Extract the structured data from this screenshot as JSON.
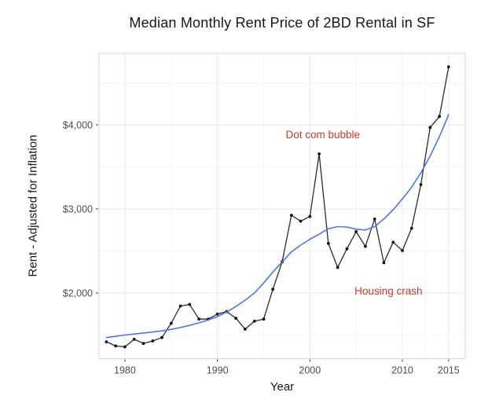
{
  "chart_data": {
    "type": "line",
    "title": "Median Monthly Rent Price of 2BD Rental in SF",
    "xlabel": "Year",
    "ylabel": "Rent - Adjusted for Inflation",
    "xlim": [
      1977.2,
      2016.8
    ],
    "ylim": [
      1220,
      4850
    ],
    "grid": "on",
    "legend": "none",
    "x_ticks": [
      {
        "value": 1980,
        "label": "1980"
      },
      {
        "value": 1990,
        "label": "1990"
      },
      {
        "value": 2000,
        "label": "2000"
      },
      {
        "value": 2010,
        "label": "2010"
      },
      {
        "value": 2015,
        "label": "2015"
      }
    ],
    "y_ticks": [
      {
        "value": 2000,
        "label": "$2,000"
      },
      {
        "value": 3000,
        "label": "$3,000"
      },
      {
        "value": 4000,
        "label": "$4,000"
      }
    ],
    "x_minor": [
      1985,
      1995,
      2005,
      2012.5
    ],
    "y_minor": [
      1500,
      2500,
      3500,
      4500
    ],
    "x": [
      1978,
      1979,
      1980,
      1981,
      1982,
      1983,
      1984,
      1985,
      1986,
      1987,
      1988,
      1989,
      1990,
      1991,
      1992,
      1993,
      1994,
      1995,
      1996,
      1997,
      1998,
      1999,
      2000,
      2001,
      2002,
      2003,
      2004,
      2005,
      2006,
      2007,
      2008,
      2009,
      2010,
      2011,
      2012,
      2013,
      2014,
      2015
    ],
    "series": [
      {
        "name": "actual-rent",
        "kind": "line+points",
        "width": 1.3,
        "values": [
          1420,
          1370,
          1360,
          1450,
          1400,
          1430,
          1470,
          1640,
          1845,
          1865,
          1690,
          1690,
          1750,
          1780,
          1700,
          1570,
          1665,
          1690,
          2045,
          2370,
          2925,
          2855,
          2910,
          3655,
          2590,
          2305,
          2525,
          2730,
          2555,
          2880,
          2360,
          2605,
          2505,
          2770,
          3290,
          3970,
          4100,
          4690
        ]
      },
      {
        "name": "loess-smooth",
        "kind": "line",
        "width": 1.6,
        "values": [
          1470,
          1485,
          1500,
          1512,
          1525,
          1537,
          1550,
          1568,
          1590,
          1615,
          1645,
          1680,
          1720,
          1775,
          1840,
          1915,
          2000,
          2120,
          2250,
          2370,
          2490,
          2570,
          2640,
          2700,
          2765,
          2790,
          2785,
          2760,
          2750,
          2790,
          2880,
          2990,
          3120,
          3260,
          3430,
          3630,
          3860,
          4120
        ]
      }
    ],
    "annotations": [
      {
        "text": "Dot com bubble",
        "x": 2001.4,
        "y": 3880
      },
      {
        "text": "Housing crash",
        "x": 2008.5,
        "y": 2020
      }
    ],
    "colors": {
      "actual_line": "#2b2b2b",
      "point": "#111111",
      "smooth_line": "#4d74ee",
      "annotation": "#cd3a2a",
      "grid_major": "#e8e8e8",
      "grid_minor": "#f3f3f3",
      "panel_border": "#d6d6d6",
      "tick_mark": "#333333",
      "tick_label": "#4d4d4d",
      "text": "#171717"
    }
  }
}
